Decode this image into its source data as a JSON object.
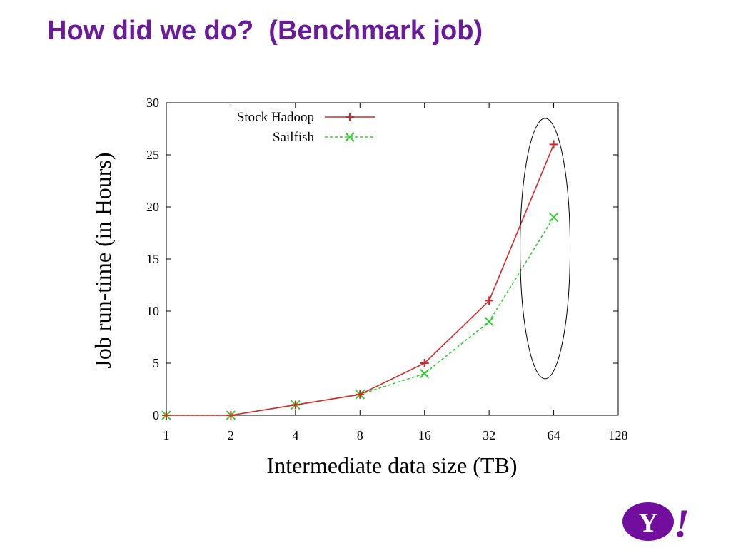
{
  "slide": {
    "title": "How did we do?  (Benchmark job)"
  },
  "logo": {
    "text": "Y!",
    "color": "#720e9e"
  },
  "chart_data": {
    "type": "line",
    "xlabel": "Intermediate data size (TB)",
    "ylabel": "Job run-time (in Hours)",
    "x_scale": "log2",
    "x_ticks": [
      1,
      2,
      4,
      8,
      16,
      32,
      64,
      128
    ],
    "y_ticks": [
      0,
      5,
      10,
      15,
      20,
      25,
      30
    ],
    "xlim": [
      1,
      128
    ],
    "ylim": [
      0,
      30
    ],
    "grid": false,
    "legend_position": "top-left",
    "x": [
      1,
      2,
      4,
      8,
      16,
      32,
      64
    ],
    "series": [
      {
        "name": "Stock Hadoop",
        "values": [
          0,
          0,
          1,
          2,
          5,
          11,
          26
        ],
        "color": "#d62728",
        "marker": "plus",
        "line": "solid"
      },
      {
        "name": "Sailfish",
        "values": [
          0,
          0,
          1,
          2,
          4,
          9,
          19
        ],
        "color": "#33cc33",
        "marker": "x",
        "line": "dashed"
      }
    ],
    "annotation": {
      "type": "ellipse",
      "around_x": 64,
      "y_range": [
        3.5,
        28.5
      ]
    }
  }
}
